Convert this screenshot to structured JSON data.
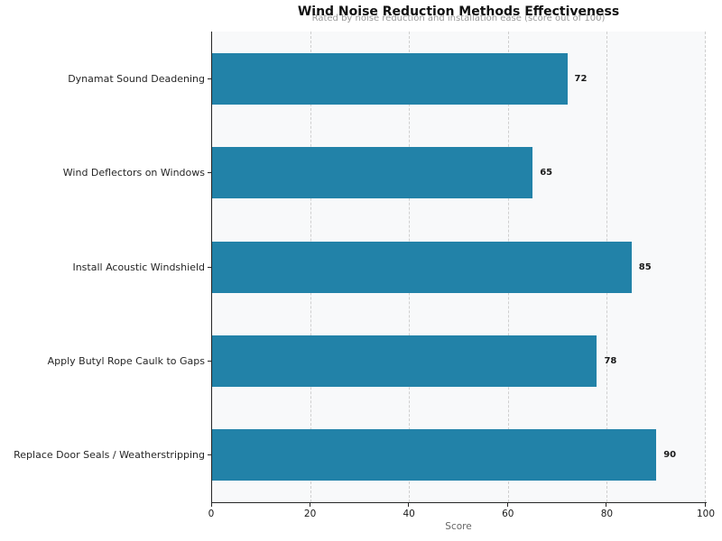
{
  "chart_data": {
    "type": "bar",
    "orientation": "horizontal",
    "title": "Wind Noise Reduction Methods Effectiveness",
    "subtitle": "Rated by noise reduction and installation ease (score out of 100)",
    "xlabel": "Score",
    "categories": [
      "Dynamat Sound Deadening",
      "Wind Deflectors on Windows",
      "Install Acoustic Windshield",
      "Apply Butyl Rope Caulk to Gaps",
      "Replace Door Seals / Weatherstripping"
    ],
    "values": [
      72,
      65,
      85,
      78,
      90
    ],
    "x_ticks": [
      "0",
      "20",
      "40",
      "60",
      "80",
      "100"
    ],
    "xlim": [
      0,
      100
    ],
    "grid": "vertical-dashed",
    "legend": "none",
    "bar_color": "#2282a8",
    "plot_background": "#f8f9fa",
    "figure_background": "#ffffff"
  }
}
